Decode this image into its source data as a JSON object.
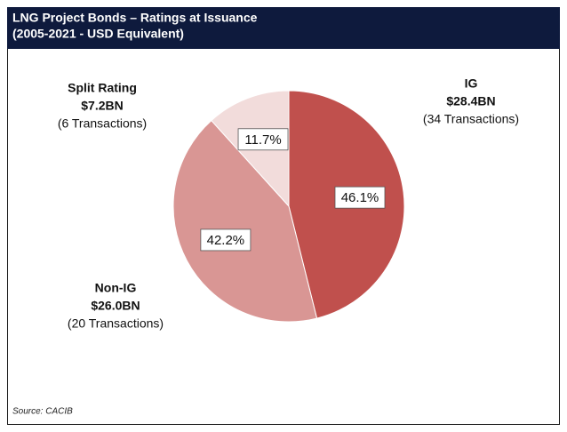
{
  "chart_data": {
    "type": "pie",
    "title": "LNG Project Bonds – Ratings at Issuance",
    "subtitle": "(2005-2021 - USD Equivalent)",
    "categories": [
      "IG",
      "Non-IG",
      "Split Rating"
    ],
    "values": [
      46.1,
      42.2,
      11.7
    ],
    "value_labels": [
      "46.1%",
      "42.2%",
      "11.7%"
    ],
    "amount_labels": [
      "$28.4BN",
      "$26.0BN",
      "$7.2BN"
    ],
    "transaction_labels": [
      "(34 Transactions)",
      "(20 Transactions)",
      "(6 Transactions)"
    ],
    "colors": [
      "#c0504d",
      "#d99694",
      "#f2dcdb"
    ],
    "source": "Source: CACIB"
  }
}
